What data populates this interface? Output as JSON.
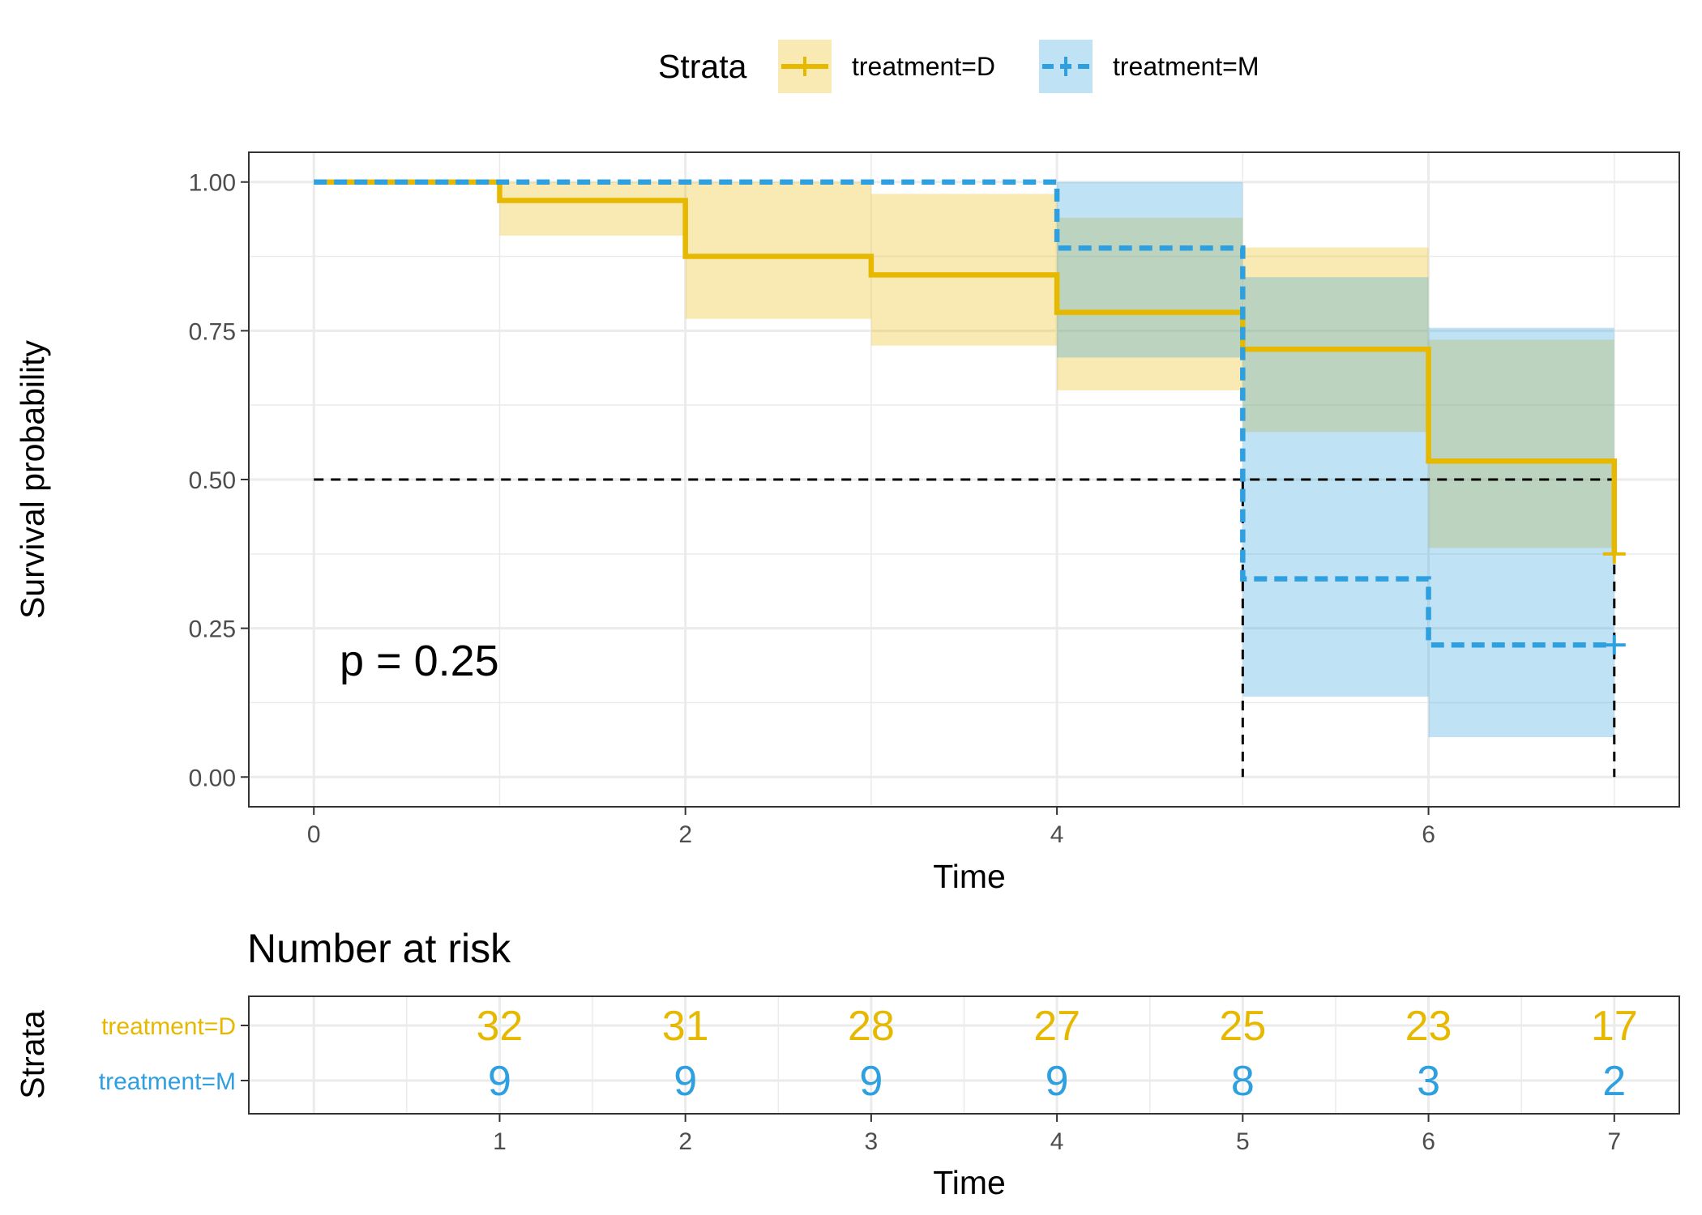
{
  "chart_data": [
    {
      "type": "line",
      "subtype": "kaplan-meier survival curve",
      "xlabel": "Time",
      "ylabel": "Survival probability",
      "xlim": [
        -0.35,
        7.35
      ],
      "ylim": [
        -0.05,
        1.05
      ],
      "x_ticks": [
        "0",
        "2",
        "4",
        "6"
      ],
      "y_ticks": [
        "0.00",
        "0.25",
        "0.50",
        "0.75",
        "1.00"
      ],
      "grid": true,
      "legend": {
        "title": "Strata",
        "position": "top",
        "entries": [
          "treatment=D",
          "treatment=M"
        ]
      },
      "annotation": "p = 0.25",
      "median_line": {
        "y": 0.5,
        "x_drops": [
          5,
          7
        ]
      },
      "series": [
        {
          "name": "treatment=D",
          "color": "#E7B800",
          "line_style": "solid",
          "steps": [
            {
              "x": 0,
              "y": 1.0
            },
            {
              "x": 1,
              "y": 0.969
            },
            {
              "x": 2,
              "y": 0.875
            },
            {
              "x": 3,
              "y": 0.844
            },
            {
              "x": 4,
              "y": 0.781
            },
            {
              "x": 5,
              "y": 0.719
            },
            {
              "x": 6,
              "y": 0.531
            },
            {
              "x": 7,
              "y": 0.375
            }
          ],
          "end_x": 7,
          "ci": [
            {
              "x0": 0,
              "x1": 1,
              "lower": 1.0,
              "upper": 1.0
            },
            {
              "x0": 1,
              "x1": 2,
              "lower": 0.91,
              "upper": 1.0
            },
            {
              "x0": 2,
              "x1": 3,
              "lower": 0.77,
              "upper": 1.0
            },
            {
              "x0": 3,
              "x1": 4,
              "lower": 0.725,
              "upper": 0.98
            },
            {
              "x0": 4,
              "x1": 5,
              "lower": 0.65,
              "upper": 0.94
            },
            {
              "x0": 5,
              "x1": 6,
              "lower": 0.58,
              "upper": 0.89
            },
            {
              "x0": 6,
              "x1": 7,
              "lower": 0.385,
              "upper": 0.735
            }
          ],
          "censor": [
            {
              "x": 7,
              "y": 0.375
            }
          ]
        },
        {
          "name": "treatment=M",
          "color": "#2E9FDF",
          "line_style": "dashed",
          "steps": [
            {
              "x": 0,
              "y": 1.0
            },
            {
              "x": 4,
              "y": 0.889
            },
            {
              "x": 5,
              "y": 0.333
            },
            {
              "x": 6,
              "y": 0.222
            }
          ],
          "end_x": 7,
          "ci": [
            {
              "x0": 0,
              "x1": 4,
              "lower": 1.0,
              "upper": 1.0
            },
            {
              "x0": 4,
              "x1": 5,
              "lower": 0.705,
              "upper": 1.0
            },
            {
              "x0": 5,
              "x1": 6,
              "lower": 0.135,
              "upper": 0.84
            },
            {
              "x0": 6,
              "x1": 7,
              "lower": 0.067,
              "upper": 0.755
            }
          ],
          "censor": [
            {
              "x": 7,
              "y": 0.222
            }
          ]
        }
      ]
    },
    {
      "type": "table",
      "title": "Number at risk",
      "xlabel": "Time",
      "ylabel": "Strata",
      "xlim": [
        -0.35,
        7.35
      ],
      "x_ticks": [
        "1",
        "2",
        "3",
        "4",
        "5",
        "6",
        "7"
      ],
      "x": [
        1,
        2,
        3,
        4,
        5,
        6,
        7
      ],
      "rows": [
        {
          "name": "treatment=D",
          "color": "#E7B800",
          "values": [
            32,
            31,
            28,
            27,
            25,
            23,
            17
          ]
        },
        {
          "name": "treatment=M",
          "color": "#2E9FDF",
          "values": [
            9,
            9,
            9,
            9,
            8,
            3,
            2
          ]
        }
      ]
    }
  ]
}
